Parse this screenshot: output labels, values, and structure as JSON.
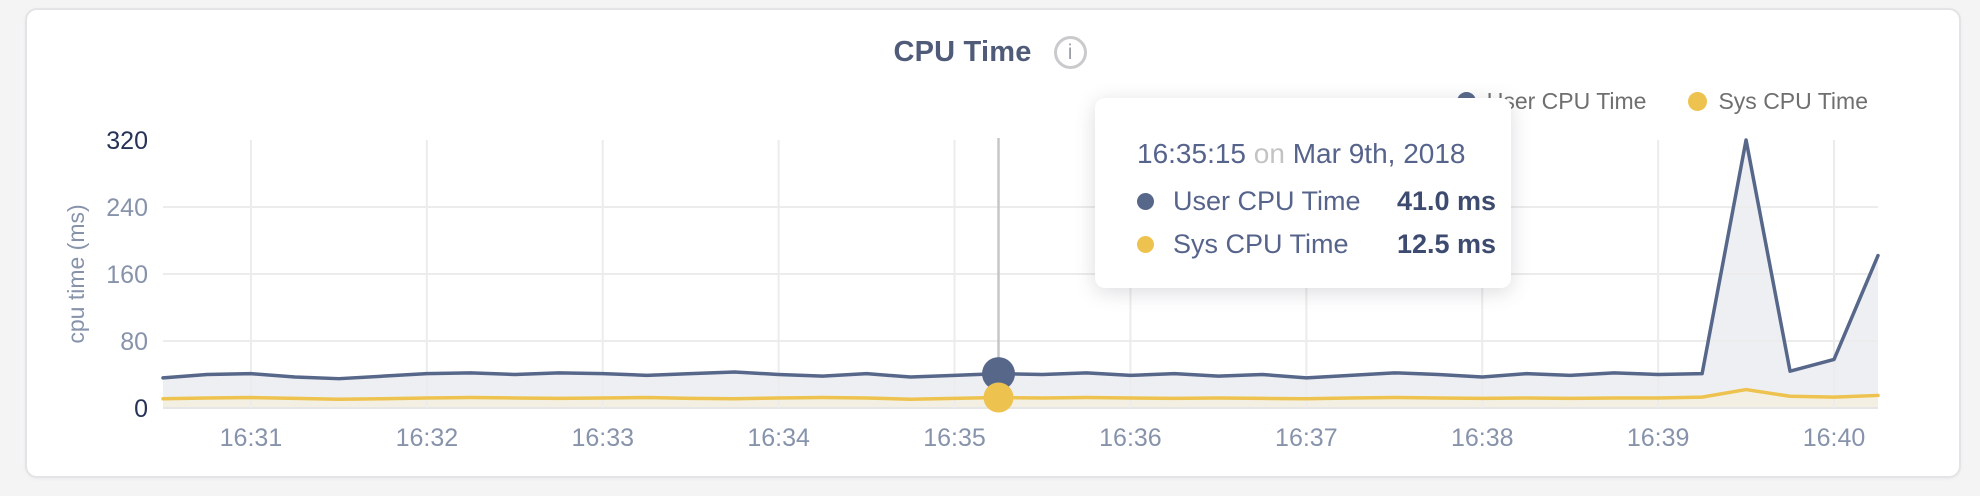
{
  "card": {
    "title": "CPU Time",
    "info_icon": "i"
  },
  "legend": {
    "items": [
      {
        "label": "User CPU Time",
        "color": "#57678a"
      },
      {
        "label": "Sys CPU Time",
        "color": "#eec24e"
      }
    ]
  },
  "tooltip": {
    "time": "16:35:15",
    "conjunction": "on",
    "date": "Mar 9th, 2018",
    "rows": [
      {
        "label": "User CPU Time",
        "value": "41.0 ms",
        "color": "#57678a"
      },
      {
        "label": "Sys CPU Time",
        "value": "12.5 ms",
        "color": "#eec24e"
      }
    ]
  },
  "chart_data": {
    "type": "line",
    "title": "CPU Time",
    "xlabel": "",
    "ylabel": "cpu time (ms)",
    "ylim": [
      0,
      320
    ],
    "y_ticks": [
      0,
      80,
      160,
      240,
      320
    ],
    "y_ticks_emphasized": [
      0,
      320
    ],
    "x_tick_labels": [
      "16:31",
      "16:32",
      "16:33",
      "16:34",
      "16:35",
      "16:36",
      "16:37",
      "16:38",
      "16:39",
      "16:40"
    ],
    "start_time": "16:30:30",
    "point_interval_seconds": 15,
    "first_tick_offset_seconds": 30,
    "tick_interval_seconds": 60,
    "grid": true,
    "legend_position": "top-right",
    "highlight_index": 19,
    "highlight_time": "16:35:15",
    "series": [
      {
        "name": "User CPU Time",
        "color": "#57678a",
        "fill": "#edeff3",
        "values": [
          36,
          40,
          41,
          37,
          35,
          38,
          41,
          42,
          40,
          42,
          41,
          39,
          41,
          43,
          40,
          38,
          41,
          37,
          39,
          41,
          40,
          42,
          39,
          41,
          38,
          40,
          36,
          39,
          42,
          40,
          37,
          41,
          39,
          42,
          40,
          41,
          320,
          44,
          58,
          182
        ]
      },
      {
        "name": "Sys CPU Time",
        "color": "#eec24e",
        "fill": "#f3f0e3",
        "values": [
          11,
          12,
          12.5,
          11.5,
          10.5,
          11,
          12,
          12.5,
          12,
          11.5,
          12,
          12.5,
          11.5,
          11,
          12,
          12.5,
          12,
          10.5,
          11.5,
          12.5,
          12,
          12.5,
          12,
          11.5,
          12,
          11.5,
          11,
          12,
          12.5,
          12,
          11.5,
          12,
          11.5,
          12,
          12,
          13,
          22,
          14,
          13,
          15
        ]
      }
    ],
    "colors": {
      "grid": "#ececec",
      "axis": "#e6e6e6",
      "crosshair": "#c6c6c6",
      "tick_label": "#8793ab",
      "tick_label_strong": "#273356",
      "axis_title": "#8793ab"
    }
  }
}
